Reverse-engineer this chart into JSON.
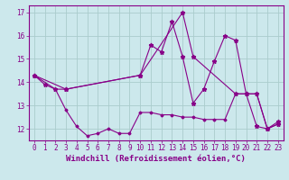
{
  "title": "",
  "xlabel": "Windchill (Refroidissement éolien,°C)",
  "ylabel": "",
  "background_color": "#cce8ec",
  "line_color": "#880088",
  "grid_color": "#aacccc",
  "xlim": [
    -0.5,
    23.5
  ],
  "ylim": [
    11.5,
    17.3
  ],
  "xticks": [
    0,
    1,
    2,
    3,
    4,
    5,
    6,
    7,
    8,
    9,
    10,
    11,
    12,
    13,
    14,
    15,
    16,
    17,
    18,
    19,
    20,
    21,
    22,
    23
  ],
  "yticks": [
    12,
    13,
    14,
    15,
    16,
    17
  ],
  "line1_x": [
    0,
    1,
    2,
    3,
    10,
    11,
    12,
    13,
    14,
    15,
    16,
    17,
    18,
    19,
    20,
    21,
    22,
    23
  ],
  "line1_y": [
    14.3,
    13.9,
    13.7,
    13.7,
    14.3,
    15.6,
    15.3,
    16.6,
    15.1,
    13.1,
    13.7,
    14.9,
    16.0,
    15.8,
    13.5,
    12.1,
    12.0,
    12.3
  ],
  "line2_x": [
    0,
    2,
    3,
    4,
    5,
    6,
    7,
    8,
    9,
    10,
    11,
    12,
    13,
    14,
    15,
    16,
    17,
    18,
    19,
    20,
    21,
    22,
    23
  ],
  "line2_y": [
    14.3,
    13.7,
    12.8,
    12.1,
    11.7,
    11.8,
    12.0,
    11.8,
    11.8,
    12.7,
    12.7,
    12.6,
    12.6,
    12.5,
    12.5,
    12.4,
    12.4,
    12.4,
    13.5,
    13.5,
    13.5,
    12.0,
    12.2
  ],
  "line3_x": [
    0,
    3,
    10,
    14,
    15,
    19,
    20,
    21,
    22,
    23
  ],
  "line3_y": [
    14.3,
    13.7,
    14.3,
    17.0,
    15.1,
    13.5,
    13.5,
    13.5,
    12.0,
    12.2
  ],
  "font_family": "monospace",
  "tick_fontsize": 5.5,
  "label_fontsize": 6.5,
  "fig_width": 3.2,
  "fig_height": 2.0,
  "dpi": 100
}
